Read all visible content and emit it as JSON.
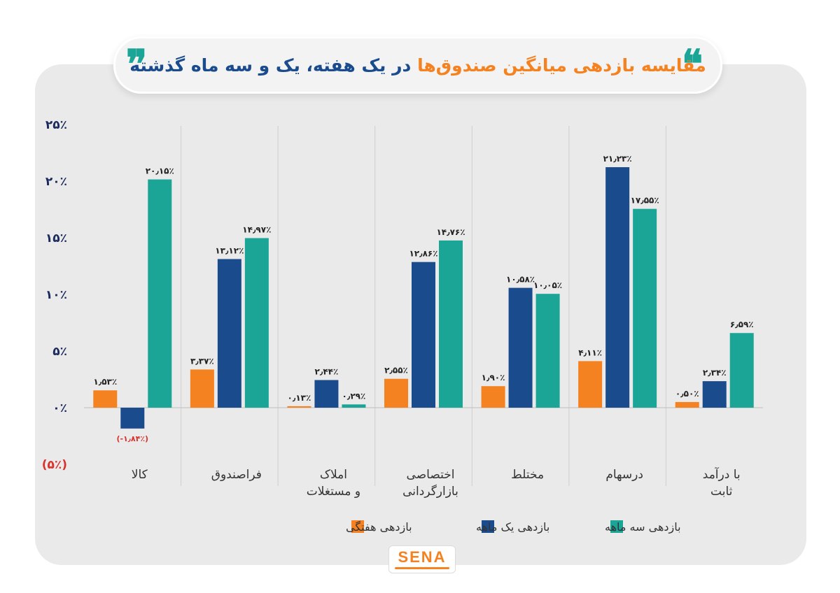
{
  "header": {
    "title_part1": "مقایسه بازدهی میانگین صندوق‌ها",
    "title_part2": "در یک هفته، یک و سه ماه گذشته",
    "quote_open": "❞",
    "quote_close": "❝"
  },
  "logo": {
    "text": "SENA"
  },
  "colors": {
    "weekly": "#f58220",
    "one_month": "#1a4b8c",
    "three_month": "#1aa596",
    "negative_label": "#d9312b",
    "axis_text": "#1b2a5c"
  },
  "chart_data": {
    "type": "bar",
    "title": "مقایسه بازدهی میانگین صندوق‌ها در یک هفته، یک و سه ماه گذشته",
    "categories": [
      "کالا",
      "فراصندوق",
      "املاک و مستغلات",
      "اختصاصی بازارگردانی",
      "مختلط",
      "درسهام",
      "با درآمد ثابت"
    ],
    "category_lines": [
      [
        "کالا"
      ],
      [
        "فراصندوق"
      ],
      [
        "املاک",
        "و مستغلات"
      ],
      [
        "اختصاصی",
        "بازارگردانی"
      ],
      [
        "مختلط"
      ],
      [
        "درسهام"
      ],
      [
        "با درآمد",
        "ثابت"
      ]
    ],
    "series": [
      {
        "name": "بازدهی هفتگی",
        "values": [
          1.53,
          3.37,
          0.13,
          2.55,
          1.9,
          4.11,
          0.5
        ],
        "labels": [
          "۱٫۵۳٪",
          "۳٫۳۷٪",
          "۰٫۱۳٪",
          "۲٫۵۵٪",
          "۱٫۹۰٪",
          "۴٫۱۱٪",
          "۰٫۵۰٪"
        ]
      },
      {
        "name": "بازدهی یک ماهه",
        "values": [
          -1.84,
          13.12,
          2.44,
          12.86,
          10.58,
          21.23,
          2.34
        ],
        "labels": [
          "(-۱٫۸۴٪)",
          "۱۳٫۱۲٪",
          "۲٫۴۴٪",
          "۱۲٫۸۶٪",
          "۱۰٫۵۸٪",
          "۲۱٫۲۳٪",
          "۲٫۳۴٪"
        ]
      },
      {
        "name": "بازدهی سه ماهه",
        "values": [
          20.15,
          14.97,
          0.29,
          14.76,
          10.05,
          17.55,
          6.59
        ],
        "labels": [
          "۲۰٫۱۵٪",
          "۱۴٫۹۷٪",
          "۰٫۲۹٪",
          "۱۴٫۷۶٪",
          "۱۰٫۰۵٪",
          "۱۷٫۵۵٪",
          "۶٫۵۹٪"
        ]
      }
    ],
    "ylim": [
      -5,
      25
    ],
    "yticks": [
      25,
      20,
      15,
      10,
      5,
      0,
      -5
    ],
    "ytick_labels": [
      "۲۵٪",
      "۲۰٪",
      "۱۵٪",
      "۱۰٪",
      "۵٪",
      "۰٪",
      "(۵٪)"
    ],
    "xlabel": "",
    "ylabel": "",
    "grid": false,
    "legend_position": "bottom"
  }
}
